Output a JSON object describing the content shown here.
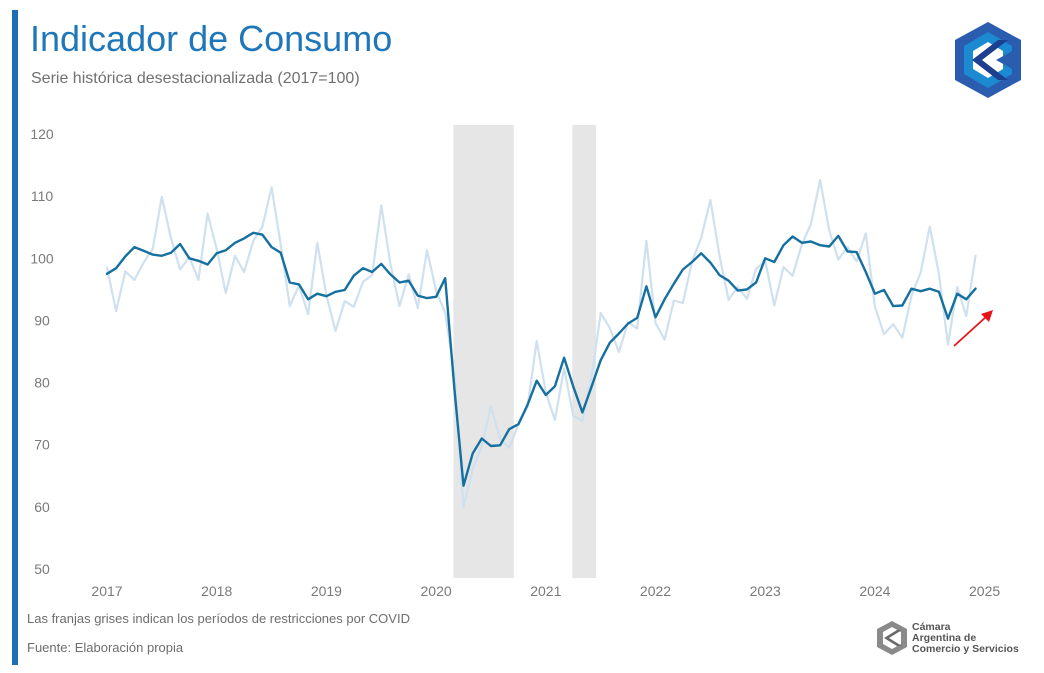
{
  "header": {
    "title": "Indicador de Consumo",
    "subtitle": "Serie histórica desestacionalizada (2017=100)"
  },
  "footer": {
    "note": "Las franjas grises indican los períodos de restricciones por COVID",
    "source": "Fuente: Elaboración propia",
    "brand_lines": [
      "Cámara",
      "Argentina de",
      "Comercio y Servicios"
    ]
  },
  "colors": {
    "main_line": "#16709f",
    "raw_line": "#cfe0ee",
    "band": "#e6e6e6",
    "arrow": "#e8141a",
    "accent": "#1a6fb5"
  },
  "chart_data": {
    "type": "line",
    "title": "Indicador de Consumo",
    "subtitle": "Serie histórica desestacionalizada (2017=100)",
    "x_start": "2017-01",
    "frequency": "monthly",
    "x_ticks": [
      "2017",
      "2018",
      "2019",
      "2020",
      "2021",
      "2022",
      "2023",
      "2024",
      "2025"
    ],
    "y_ticks": [
      120,
      110,
      100,
      90,
      80,
      70,
      60,
      50
    ],
    "ylim": [
      50,
      120
    ],
    "grid": false,
    "legend": "none",
    "shaded_periods": [
      {
        "start": "2020-03",
        "end": "2020-09"
      },
      {
        "start": "2021-04",
        "end": "2021-06"
      }
    ],
    "annotations": [
      {
        "type": "arrow",
        "direction": "up-right",
        "near": "2025-01"
      }
    ],
    "series": [
      {
        "values": [
          97.5,
          98.4,
          100.3,
          101.8,
          101.2,
          100.6,
          100.4,
          100.9,
          102.3,
          100,
          99.6,
          99,
          100.8,
          101.3,
          102.5,
          103.2,
          104.1,
          103.8,
          101.8,
          100.9,
          96.1,
          95.8,
          93.4,
          94.3,
          93.9,
          94.6,
          94.9,
          97.2,
          98.4,
          97.8,
          99.1,
          97.4,
          96.1,
          96.4,
          94,
          93.6,
          93.8,
          96.8,
          79,
          63.4,
          68.6,
          71,
          69.8,
          69.9,
          72.5,
          73.3,
          76.4,
          80.3,
          78,
          79.4,
          84,
          79.4,
          75.2,
          79.3,
          83.6,
          86.4,
          87.9,
          89.5,
          90.4,
          95.5,
          90.5,
          93.4,
          95.9,
          98.2,
          99.4,
          100.8,
          99.3,
          97.3,
          96.4,
          94.8,
          95,
          96.1,
          100,
          99.4,
          102.1,
          103.5,
          102.5,
          102.7,
          102.1,
          101.9,
          103.6,
          101.1,
          101,
          97.8,
          94.3,
          94.9,
          92.3,
          92.4,
          95.1,
          94.7,
          95.1,
          94.6,
          90.3,
          94.3,
          93.4,
          95.1
        ]
      },
      {
        "values": [
          98.5,
          91.5,
          97.9,
          96.5,
          99.3,
          101.5,
          109.9,
          103.2,
          98.2,
          100.2,
          96.5,
          107.2,
          101.5,
          94.4,
          100.4,
          97.8,
          102.8,
          105.1,
          111.4,
          102.2,
          92.3,
          95.6,
          91,
          102.5,
          94.1,
          88.3,
          93.1,
          92.2,
          96.2,
          97.3,
          108.5,
          99.1,
          92.3,
          97.4,
          92,
          101.3,
          94.8,
          91.2,
          81.4,
          60,
          66.1,
          69.9,
          76.2,
          70.9,
          69.5,
          73.3,
          76.1,
          86.7,
          78.4,
          74,
          82.3,
          74.7,
          73.8,
          80.8,
          91.2,
          88.8,
          84.9,
          89.7,
          88.7,
          102.8,
          89.6,
          86.9,
          93.2,
          92.8,
          99.5,
          103.3,
          109.4,
          100.4,
          93.3,
          95.4,
          93.5,
          98.3,
          99.6,
          92.4,
          98.6,
          97.2,
          102.2,
          105.5,
          112.6,
          104.5,
          99.8,
          101.8,
          99.5,
          104,
          92.2,
          87.8,
          89.4,
          87.2,
          94,
          97.7,
          105.1,
          97.5,
          86.1,
          95.4,
          90.7,
          100.4
        ]
      }
    ]
  }
}
